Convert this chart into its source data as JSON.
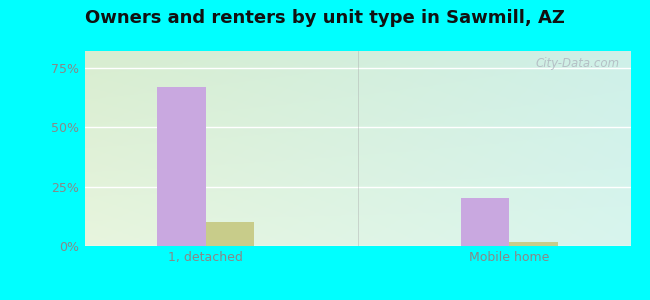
{
  "title": "Owners and renters by unit type in Sawmill, AZ",
  "categories": [
    "1, detached",
    "Mobile home"
  ],
  "owner_values": [
    67.0,
    20.0
  ],
  "renter_values": [
    10.0,
    1.5
  ],
  "owner_color": "#c9a8e0",
  "renter_color": "#c8cc8a",
  "yticks": [
    0,
    25,
    50,
    75
  ],
  "ytick_labels": [
    "0%",
    "25%",
    "50%",
    "75%"
  ],
  "ylim": [
    0,
    82
  ],
  "bar_width": 0.32,
  "bg_color_topleft": "#d8edd0",
  "bg_color_topright": "#cef0e8",
  "bg_color_bottomleft": "#e8f5de",
  "bg_color_bottomright": "#d8f5ee",
  "outer_bg": "#00ffff",
  "watermark": "City-Data.com",
  "title_fontsize": 13,
  "axis_fontsize": 9,
  "legend_fontsize": 9,
  "grid_color": "#ffffff",
  "tick_color": "#888888",
  "divider_color": "#aaaaaa"
}
